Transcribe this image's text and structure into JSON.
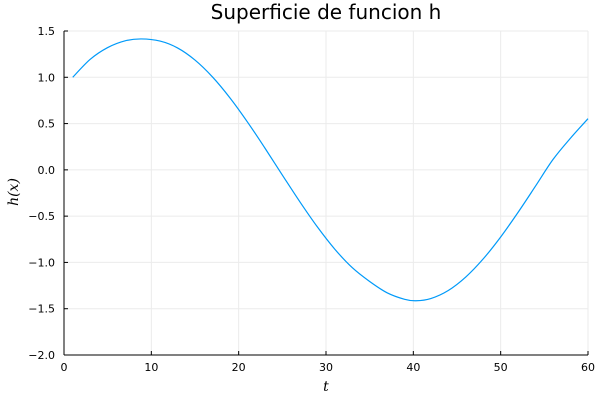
{
  "chart_data": {
    "type": "line",
    "title": "Superficie de funcion h",
    "xlabel": "t",
    "ylabel": "h(x)",
    "xlim": [
      0,
      60
    ],
    "ylim": [
      -2.0,
      1.5
    ],
    "xticks": [
      "0",
      "10",
      "20",
      "30",
      "40",
      "50",
      "60"
    ],
    "yticks": [
      "1.5",
      "1.0",
      "0.5",
      "0.0",
      "−0.5",
      "−1.0",
      "−1.5",
      "−2.0"
    ],
    "grid": true,
    "legend": "none",
    "series": [
      {
        "color": "#009af9",
        "x": [
          1,
          3,
          5,
          7,
          8.85,
          11,
          13,
          15,
          17,
          19,
          21,
          23,
          25,
          27,
          29,
          31,
          33,
          35,
          37,
          39,
          40.3,
          42,
          44,
          46,
          48,
          50,
          52,
          54,
          56,
          58,
          60
        ],
        "y": [
          1.0,
          1.194,
          1.321,
          1.394,
          1.414,
          1.391,
          1.317,
          1.186,
          1.004,
          0.778,
          0.518,
          0.236,
          -0.056,
          -0.344,
          -0.615,
          -0.856,
          -1.056,
          -1.206,
          -1.328,
          -1.398,
          -1.414,
          -1.39,
          -1.303,
          -1.158,
          -0.962,
          -0.725,
          -0.458,
          -0.174,
          0.113,
          0.343,
          0.553
        ]
      }
    ]
  }
}
